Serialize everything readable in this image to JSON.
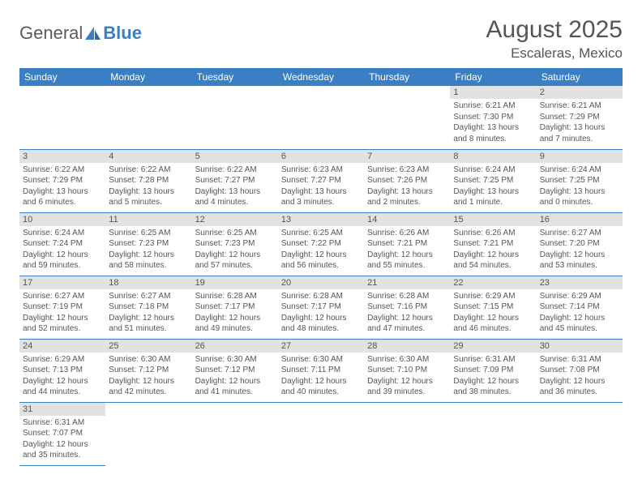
{
  "logo": {
    "text1": "General",
    "text2": "Blue"
  },
  "title": "August 2025",
  "location": "Escaleras, Mexico",
  "colors": {
    "header_bg": "#3a7fc4",
    "header_fg": "#ffffff",
    "daynum_bg": "#e2e2e2",
    "border": "#3a7fc4",
    "text": "#555555"
  },
  "weekdays": [
    "Sunday",
    "Monday",
    "Tuesday",
    "Wednesday",
    "Thursday",
    "Friday",
    "Saturday"
  ],
  "weeks": [
    [
      null,
      null,
      null,
      null,
      null,
      {
        "n": "1",
        "sr": "6:21 AM",
        "ss": "7:30 PM",
        "dl": "13 hours and 8 minutes."
      },
      {
        "n": "2",
        "sr": "6:21 AM",
        "ss": "7:29 PM",
        "dl": "13 hours and 7 minutes."
      }
    ],
    [
      {
        "n": "3",
        "sr": "6:22 AM",
        "ss": "7:29 PM",
        "dl": "13 hours and 6 minutes."
      },
      {
        "n": "4",
        "sr": "6:22 AM",
        "ss": "7:28 PM",
        "dl": "13 hours and 5 minutes."
      },
      {
        "n": "5",
        "sr": "6:22 AM",
        "ss": "7:27 PM",
        "dl": "13 hours and 4 minutes."
      },
      {
        "n": "6",
        "sr": "6:23 AM",
        "ss": "7:27 PM",
        "dl": "13 hours and 3 minutes."
      },
      {
        "n": "7",
        "sr": "6:23 AM",
        "ss": "7:26 PM",
        "dl": "13 hours and 2 minutes."
      },
      {
        "n": "8",
        "sr": "6:24 AM",
        "ss": "7:25 PM",
        "dl": "13 hours and 1 minute."
      },
      {
        "n": "9",
        "sr": "6:24 AM",
        "ss": "7:25 PM",
        "dl": "13 hours and 0 minutes."
      }
    ],
    [
      {
        "n": "10",
        "sr": "6:24 AM",
        "ss": "7:24 PM",
        "dl": "12 hours and 59 minutes."
      },
      {
        "n": "11",
        "sr": "6:25 AM",
        "ss": "7:23 PM",
        "dl": "12 hours and 58 minutes."
      },
      {
        "n": "12",
        "sr": "6:25 AM",
        "ss": "7:23 PM",
        "dl": "12 hours and 57 minutes."
      },
      {
        "n": "13",
        "sr": "6:25 AM",
        "ss": "7:22 PM",
        "dl": "12 hours and 56 minutes."
      },
      {
        "n": "14",
        "sr": "6:26 AM",
        "ss": "7:21 PM",
        "dl": "12 hours and 55 minutes."
      },
      {
        "n": "15",
        "sr": "6:26 AM",
        "ss": "7:21 PM",
        "dl": "12 hours and 54 minutes."
      },
      {
        "n": "16",
        "sr": "6:27 AM",
        "ss": "7:20 PM",
        "dl": "12 hours and 53 minutes."
      }
    ],
    [
      {
        "n": "17",
        "sr": "6:27 AM",
        "ss": "7:19 PM",
        "dl": "12 hours and 52 minutes."
      },
      {
        "n": "18",
        "sr": "6:27 AM",
        "ss": "7:18 PM",
        "dl": "12 hours and 51 minutes."
      },
      {
        "n": "19",
        "sr": "6:28 AM",
        "ss": "7:17 PM",
        "dl": "12 hours and 49 minutes."
      },
      {
        "n": "20",
        "sr": "6:28 AM",
        "ss": "7:17 PM",
        "dl": "12 hours and 48 minutes."
      },
      {
        "n": "21",
        "sr": "6:28 AM",
        "ss": "7:16 PM",
        "dl": "12 hours and 47 minutes."
      },
      {
        "n": "22",
        "sr": "6:29 AM",
        "ss": "7:15 PM",
        "dl": "12 hours and 46 minutes."
      },
      {
        "n": "23",
        "sr": "6:29 AM",
        "ss": "7:14 PM",
        "dl": "12 hours and 45 minutes."
      }
    ],
    [
      {
        "n": "24",
        "sr": "6:29 AM",
        "ss": "7:13 PM",
        "dl": "12 hours and 44 minutes."
      },
      {
        "n": "25",
        "sr": "6:30 AM",
        "ss": "7:12 PM",
        "dl": "12 hours and 42 minutes."
      },
      {
        "n": "26",
        "sr": "6:30 AM",
        "ss": "7:12 PM",
        "dl": "12 hours and 41 minutes."
      },
      {
        "n": "27",
        "sr": "6:30 AM",
        "ss": "7:11 PM",
        "dl": "12 hours and 40 minutes."
      },
      {
        "n": "28",
        "sr": "6:30 AM",
        "ss": "7:10 PM",
        "dl": "12 hours and 39 minutes."
      },
      {
        "n": "29",
        "sr": "6:31 AM",
        "ss": "7:09 PM",
        "dl": "12 hours and 38 minutes."
      },
      {
        "n": "30",
        "sr": "6:31 AM",
        "ss": "7:08 PM",
        "dl": "12 hours and 36 minutes."
      }
    ],
    [
      {
        "n": "31",
        "sr": "6:31 AM",
        "ss": "7:07 PM",
        "dl": "12 hours and 35 minutes."
      },
      null,
      null,
      null,
      null,
      null,
      null
    ]
  ],
  "labels": {
    "sunrise": "Sunrise:",
    "sunset": "Sunset:",
    "daylight": "Daylight:"
  }
}
